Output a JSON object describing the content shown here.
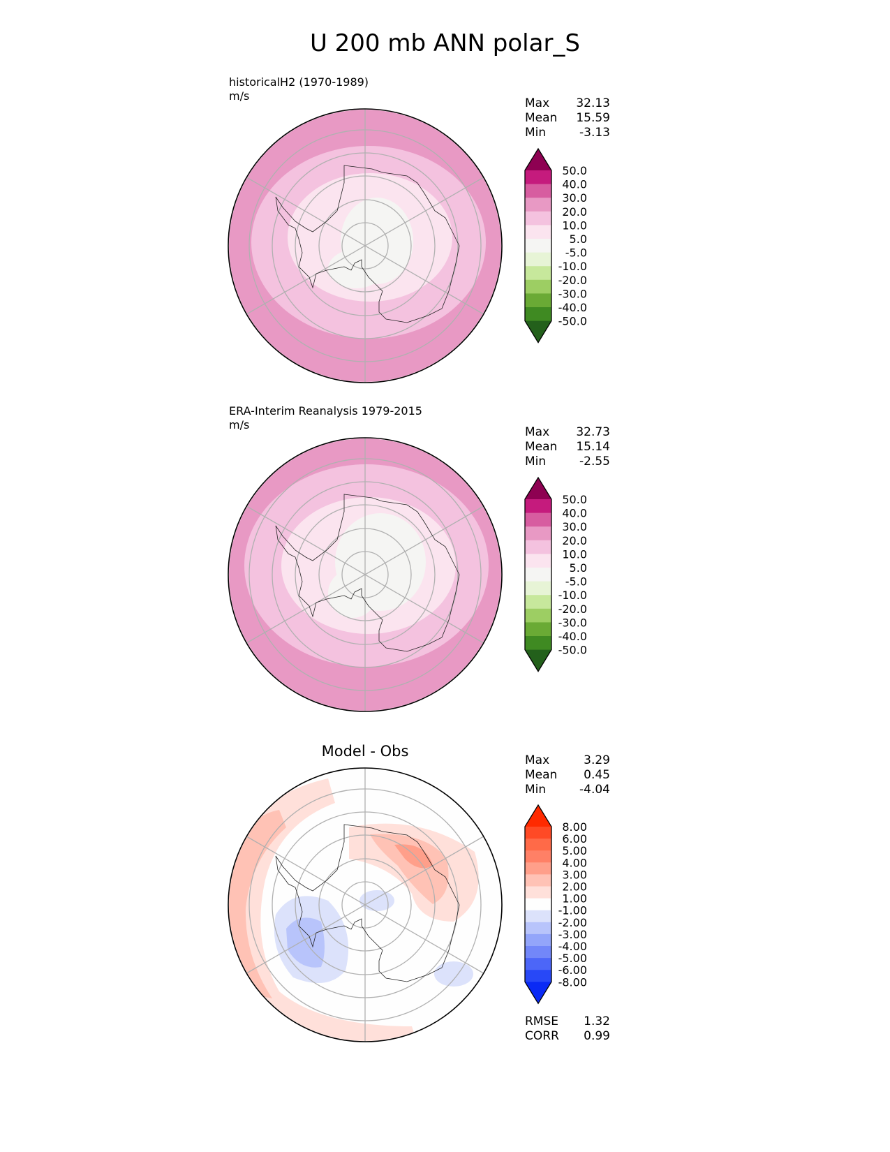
{
  "title": "U 200 mb ANN polar_S",
  "panels": [
    {
      "subtitle": "historicalH2 (1970-1989)",
      "units": "m/s",
      "stats": [
        {
          "label": "Max",
          "value": "32.13"
        },
        {
          "label": "Mean",
          "value": "15.59"
        },
        {
          "label": "Min",
          "value": "-3.13"
        }
      ]
    },
    {
      "subtitle": "ERA-Interim Reanalysis 1979-2015",
      "units": "m/s",
      "stats": [
        {
          "label": "Max",
          "value": "32.73"
        },
        {
          "label": "Mean",
          "value": "15.14"
        },
        {
          "label": "Min",
          "value": "-2.55"
        }
      ]
    },
    {
      "subtitle": "Model - Obs",
      "stats": [
        {
          "label": "Max",
          "value": "3.29"
        },
        {
          "label": "Mean",
          "value": "0.45"
        },
        {
          "label": "Min",
          "value": "-4.04"
        }
      ],
      "metrics": [
        {
          "label": "RMSE",
          "value": "1.32"
        },
        {
          "label": "CORR",
          "value": "0.99"
        }
      ]
    }
  ],
  "colorbars": {
    "field": {
      "labels": [
        "50.0",
        "40.0",
        "30.0",
        "20.0",
        "10.0",
        "5.0",
        "-5.0",
        "-10.0",
        "-20.0",
        "-30.0",
        "-40.0",
        "-50.0"
      ],
      "colors": [
        "#8e0152",
        "#c51b7d",
        "#d75da0",
        "#e899c4",
        "#f4c2df",
        "#fbe4ef",
        "#f5f5f3",
        "#e7f4d6",
        "#c7e89c",
        "#9dce63",
        "#6aaa35",
        "#3f8a22",
        "#23601b"
      ]
    },
    "diff": {
      "labels": [
        "8.00",
        "6.00",
        "5.00",
        "4.00",
        "3.00",
        "2.00",
        "1.00",
        "-1.00",
        "-2.00",
        "-3.00",
        "-4.00",
        "-5.00",
        "-6.00",
        "-8.00"
      ],
      "colors": [
        "#ff2a00",
        "#ff4a25",
        "#ff6a48",
        "#ff8066",
        "#ff9f8a",
        "#ffc2b5",
        "#ffe0da",
        "#fefefe",
        "#dce2fb",
        "#b8c4fb",
        "#93a5fa",
        "#7287f9",
        "#4c66f8",
        "#2848f7",
        "#0a2af5"
      ]
    }
  }
}
